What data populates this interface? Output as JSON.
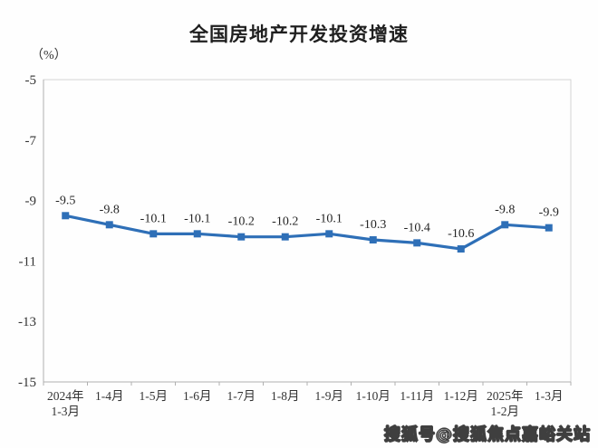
{
  "chart_data": {
    "type": "line",
    "title": "全国房地产开发投资增速",
    "unit_label": "（%）",
    "categories": [
      "2024年\n1-3月",
      "1-4月",
      "1-5月",
      "1-6月",
      "1-7月",
      "1-8月",
      "1-9月",
      "1-10月",
      "1-11月",
      "1-12月",
      "2025年\n1-2月",
      "1-3月"
    ],
    "values": [
      -9.5,
      -9.8,
      -10.1,
      -10.1,
      -10.2,
      -10.2,
      -10.1,
      -10.3,
      -10.4,
      -10.6,
      -9.8,
      -9.9
    ],
    "point_labels": [
      "-9.5",
      "-9.8",
      "-10.1",
      "-10.1",
      "-10.2",
      "-10.2",
      "-10.1",
      "-10.3",
      "-10.4",
      "-10.6",
      "-9.8",
      "-9.9"
    ],
    "xlabel": "",
    "ylabel": "（%）",
    "ylim": [
      -15,
      -5
    ],
    "yticks": [
      -5,
      -7,
      -9,
      -11,
      -13,
      -15
    ],
    "ytick_labels": [
      "-5",
      "-7",
      "-9",
      "-11",
      "-13",
      "-15"
    ],
    "grid": false,
    "legend": "none",
    "colors": {
      "line": "#2e6fb7",
      "marker": "#2e6fb7",
      "axis": "#b0b0b0",
      "plot_border": "#d4d4d4",
      "tick_text": "#333333",
      "data_label_text": "#262626",
      "title_text": "#1f1f1f"
    }
  },
  "watermark": {
    "text": "搜狐号@搜狐焦点嘉峪关站"
  }
}
